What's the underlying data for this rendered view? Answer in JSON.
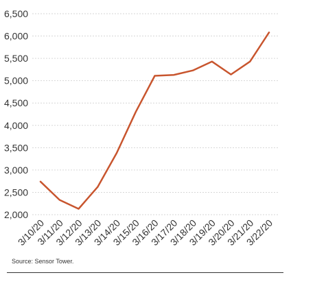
{
  "chart_data": {
    "type": "line",
    "categories": [
      "3/10/20",
      "3/11/20",
      "3/12/20",
      "3/13/20",
      "3/14/20",
      "3/15/20",
      "3/16/20",
      "3/17/20",
      "3/18/20",
      "3/19/20",
      "3/20/20",
      "3/21/20",
      "3/22/20"
    ],
    "series": [
      {
        "values": [
          2740,
          2330,
          2130,
          2620,
          3380,
          4300,
          5110,
          5130,
          5230,
          5430,
          5140,
          5430,
          6080
        ],
        "color": "#c8552e"
      }
    ],
    "ylim": [
      2000,
      6500
    ],
    "yticks": [
      2000,
      2500,
      3000,
      3500,
      4000,
      4500,
      5000,
      5500,
      6000,
      6500
    ],
    "ytick_labels": [
      "2,000",
      "2,500",
      "3,000",
      "3,500",
      "4,000",
      "4,500",
      "5,000",
      "5,500",
      "6,000",
      "6,500"
    ],
    "grid": true,
    "legend": "none"
  },
  "source": "Source: Sensor Tower."
}
